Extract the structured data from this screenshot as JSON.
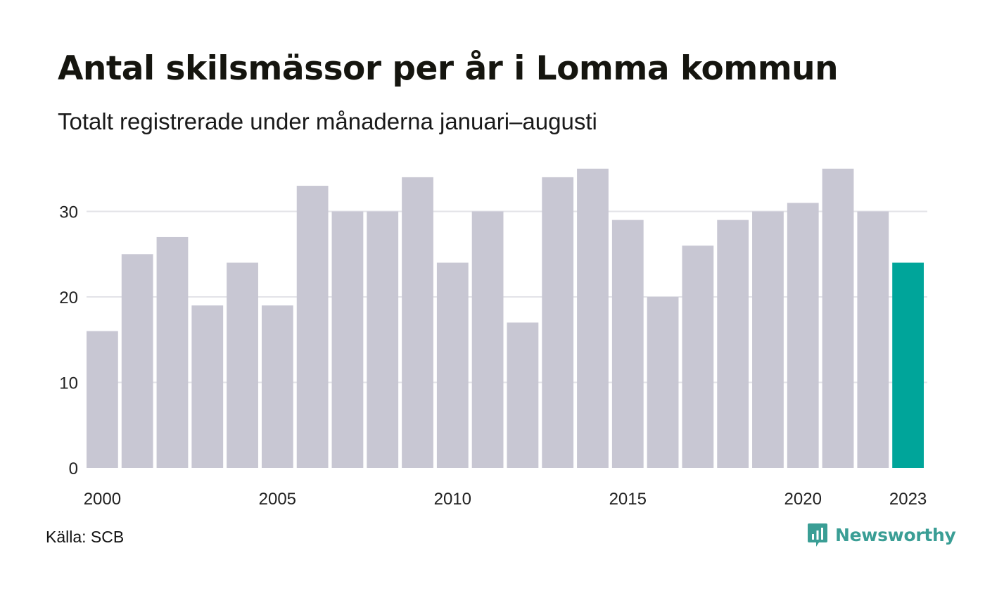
{
  "header": {
    "title": "Antal skilsmässor per år i Lomma kommun",
    "subtitle": "Totalt registrerade under månaderna januari–augusti"
  },
  "footer": {
    "source": "Källa: SCB",
    "brand": "Newsworthy"
  },
  "colors": {
    "bar": "#c8c7d3",
    "highlight": "#00a59a",
    "grid": "#e3e3e8",
    "brand": "#3a9e95"
  },
  "icons": {
    "brand": "newsworthy-chat-chart-icon"
  },
  "chart_data": {
    "type": "bar",
    "title": "Antal skilsmässor per år i Lomma kommun",
    "subtitle": "Totalt registrerade under månaderna januari–augusti",
    "categories": [
      "2000",
      "2001",
      "2002",
      "2003",
      "2004",
      "2005",
      "2006",
      "2007",
      "2008",
      "2009",
      "2010",
      "2011",
      "2012",
      "2013",
      "2014",
      "2015",
      "2016",
      "2017",
      "2018",
      "2019",
      "2020",
      "2021",
      "2022",
      "2023"
    ],
    "values": [
      16,
      25,
      27,
      19,
      24,
      19,
      33,
      30,
      30,
      34,
      24,
      30,
      17,
      34,
      35,
      29,
      20,
      26,
      29,
      30,
      31,
      35,
      30,
      24
    ],
    "highlight": [
      "2023"
    ],
    "x_tick_labels": [
      "2000",
      "2005",
      "2010",
      "2015",
      "2020",
      "2023"
    ],
    "y_ticks": [
      0,
      10,
      20,
      30
    ],
    "ylim": [
      0,
      35
    ],
    "grid": true,
    "legend": "none"
  }
}
